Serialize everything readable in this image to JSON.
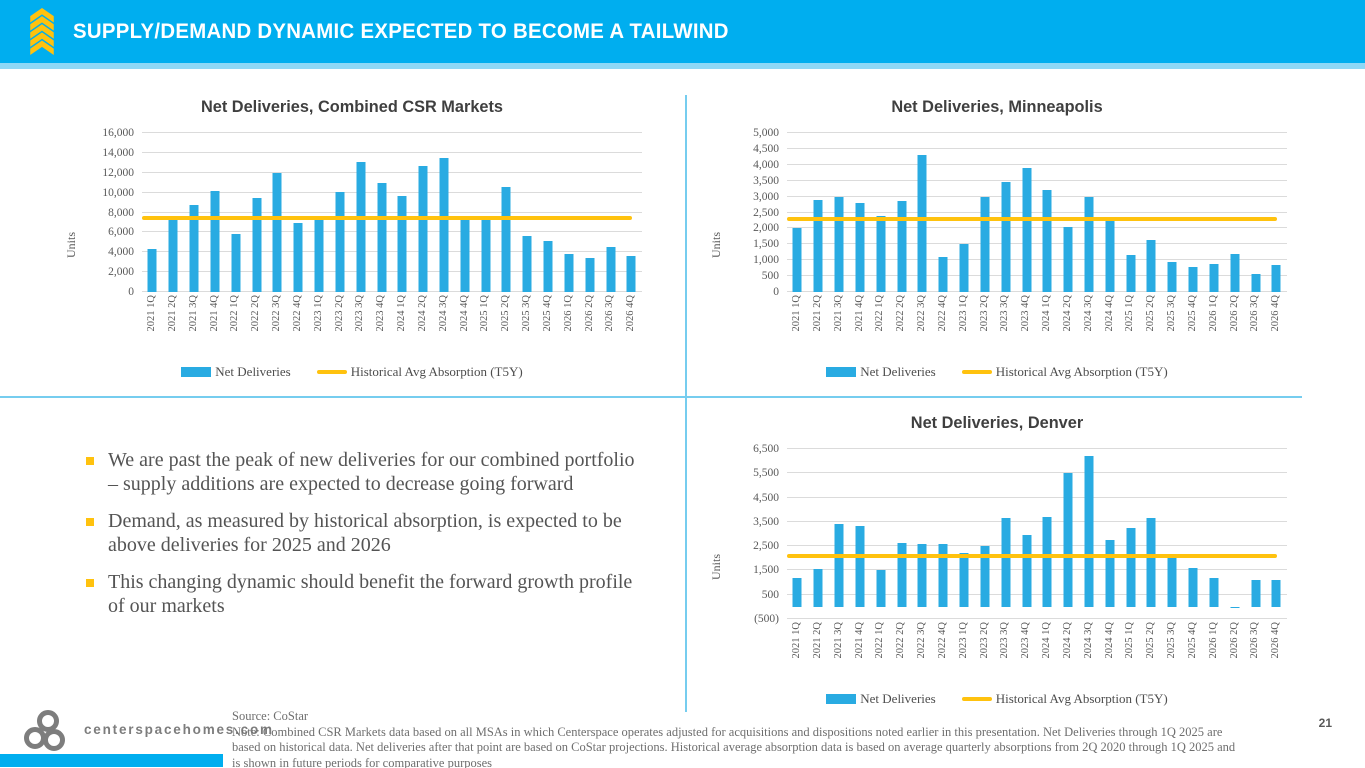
{
  "header": {
    "title": "SUPPLY/DEMAND DYNAMIC EXPECTED TO BECOME A TAILWIND",
    "icon": "yellow-chevrons-up-icon"
  },
  "bullets": [
    "We are past the peak of new deliveries for our combined portfolio – supply additions are expected to decrease going forward",
    "Demand, as measured by historical absorption, is expected to be above deliveries for 2025 and 2026",
    "This changing dynamic should benefit the forward growth profile of our markets"
  ],
  "footer": {
    "logo": "centerspace-rings-logo",
    "website": "centerspacehomes.com",
    "source": "Source: CoStar",
    "note": "Note: Combined CSR Markets data based on all MSAs in which Centerspace operates adjusted for acquisitions and dispositions noted earlier in this presentation. Net Deliveries through 1Q 2025 are based on historical data. Net deliveries after that point are based on CoStar projections. Historical average absorption data is based on average quarterly absorptions from 2Q 2020 through 1Q 2025 and is shown in future periods for comparative purposes",
    "page_number": "21"
  },
  "colors": {
    "header_cyan": "#00AEEF",
    "bar_blue": "#29ABE2",
    "avg_line_yellow": "#FFC20E",
    "divider_light_blue": "#76CDEF",
    "gridline_gray": "#DBDBDB"
  },
  "chart_data": [
    {
      "type": "bar",
      "title": "Net Deliveries, Combined CSR Markets",
      "ylabel": "Units",
      "grid": true,
      "legend_position": "bottom",
      "legend": [
        "Net Deliveries",
        "Historical Avg Absorption (T5Y)"
      ],
      "categories": [
        "2021 1Q",
        "2021 2Q",
        "2021 3Q",
        "2021 4Q",
        "2022 1Q",
        "2022 2Q",
        "2022 3Q",
        "2022 4Q",
        "2023 1Q",
        "2023 2Q",
        "2023 3Q",
        "2023 4Q",
        "2024 1Q",
        "2024 2Q",
        "2024 3Q",
        "2024 4Q",
        "2025 1Q",
        "2025 2Q",
        "2025 3Q",
        "2025 4Q",
        "2026 1Q",
        "2026 2Q",
        "2026 3Q",
        "2026 4Q"
      ],
      "series": [
        {
          "name": "Net Deliveries",
          "type": "bar",
          "values": [
            4300,
            7600,
            8800,
            10200,
            5800,
            9500,
            12000,
            6900,
            7200,
            10100,
            13100,
            11000,
            9700,
            12700,
            13500,
            7200,
            7200,
            10600,
            5600,
            5100,
            3800,
            3400,
            4500,
            3600
          ]
        },
        {
          "name": "Historical Avg Absorption (T5Y)",
          "type": "line",
          "value": 7400
        }
      ],
      "ylim": [
        0,
        16000
      ],
      "ytick_values": [
        0,
        2000,
        4000,
        6000,
        8000,
        10000,
        12000,
        14000,
        16000
      ],
      "ytick_labels": [
        "0",
        "2,000",
        "4,000",
        "6,000",
        "8,000",
        "10,000",
        "12,000",
        "14,000",
        "16,000"
      ]
    },
    {
      "type": "bar",
      "title": "Net Deliveries, Minneapolis",
      "ylabel": "Units",
      "grid": true,
      "legend_position": "bottom",
      "legend": [
        "Net Deliveries",
        "Historical Avg Absorption (T5Y)"
      ],
      "categories": [
        "2021 1Q",
        "2021 2Q",
        "2021 3Q",
        "2021 4Q",
        "2022 1Q",
        "2022 2Q",
        "2022 3Q",
        "2022 4Q",
        "2023 1Q",
        "2023 2Q",
        "2023 3Q",
        "2023 4Q",
        "2024 1Q",
        "2024 2Q",
        "2024 3Q",
        "2024 4Q",
        "2025 1Q",
        "2025 2Q",
        "2025 3Q",
        "2025 4Q",
        "2026 1Q",
        "2026 2Q",
        "2026 3Q",
        "2026 4Q"
      ],
      "series": [
        {
          "name": "Net Deliveries",
          "type": "bar",
          "values": [
            2000,
            2900,
            3000,
            2800,
            2400,
            2850,
            4300,
            1100,
            1500,
            3000,
            3450,
            3900,
            3200,
            2050,
            3000,
            2250,
            1150,
            1650,
            950,
            800,
            875,
            1200,
            575,
            850
          ]
        },
        {
          "name": "Historical Avg Absorption (T5Y)",
          "type": "line",
          "value": 2300
        }
      ],
      "ylim": [
        0,
        5000
      ],
      "ytick_values": [
        0,
        500,
        1000,
        1500,
        2000,
        2500,
        3000,
        3500,
        4000,
        4500,
        5000
      ],
      "ytick_labels": [
        "0",
        "500",
        "1,000",
        "1,500",
        "2,000",
        "2,500",
        "3,000",
        "3,500",
        "4,000",
        "4,500",
        "5,000"
      ]
    },
    {
      "type": "bar",
      "title": "Net Deliveries, Denver",
      "ylabel": "Units",
      "grid": true,
      "legend_position": "bottom",
      "legend": [
        "Net Deliveries",
        "Historical Avg Absorption (T5Y)"
      ],
      "categories": [
        "2021 1Q",
        "2021 2Q",
        "2021 3Q",
        "2021 4Q",
        "2022 1Q",
        "2022 2Q",
        "2022 3Q",
        "2022 4Q",
        "2023 1Q",
        "2023 2Q",
        "2023 3Q",
        "2023 4Q",
        "2024 1Q",
        "2024 2Q",
        "2024 3Q",
        "2024 4Q",
        "2025 1Q",
        "2025 2Q",
        "2025 3Q",
        "2025 4Q",
        "2026 1Q",
        "2026 2Q",
        "2026 3Q",
        "2026 4Q"
      ],
      "series": [
        {
          "name": "Net Deliveries",
          "type": "bar",
          "values": [
            1200,
            1550,
            3400,
            3350,
            1500,
            2650,
            2600,
            2600,
            2200,
            2500,
            3650,
            2950,
            3700,
            5500,
            6200,
            2750,
            3250,
            3650,
            2050,
            1600,
            1200,
            -50,
            1100,
            1100
          ]
        },
        {
          "name": "Historical Avg Absorption (T5Y)",
          "type": "line",
          "value": 2100
        }
      ],
      "ylim": [
        -500,
        6500
      ],
      "ytick_values": [
        -500,
        500,
        1500,
        2500,
        3500,
        4500,
        5500,
        6500
      ],
      "ytick_labels": [
        "(500)",
        "500",
        "1,500",
        "2,500",
        "3,500",
        "4,500",
        "5,500",
        "6,500"
      ]
    }
  ]
}
